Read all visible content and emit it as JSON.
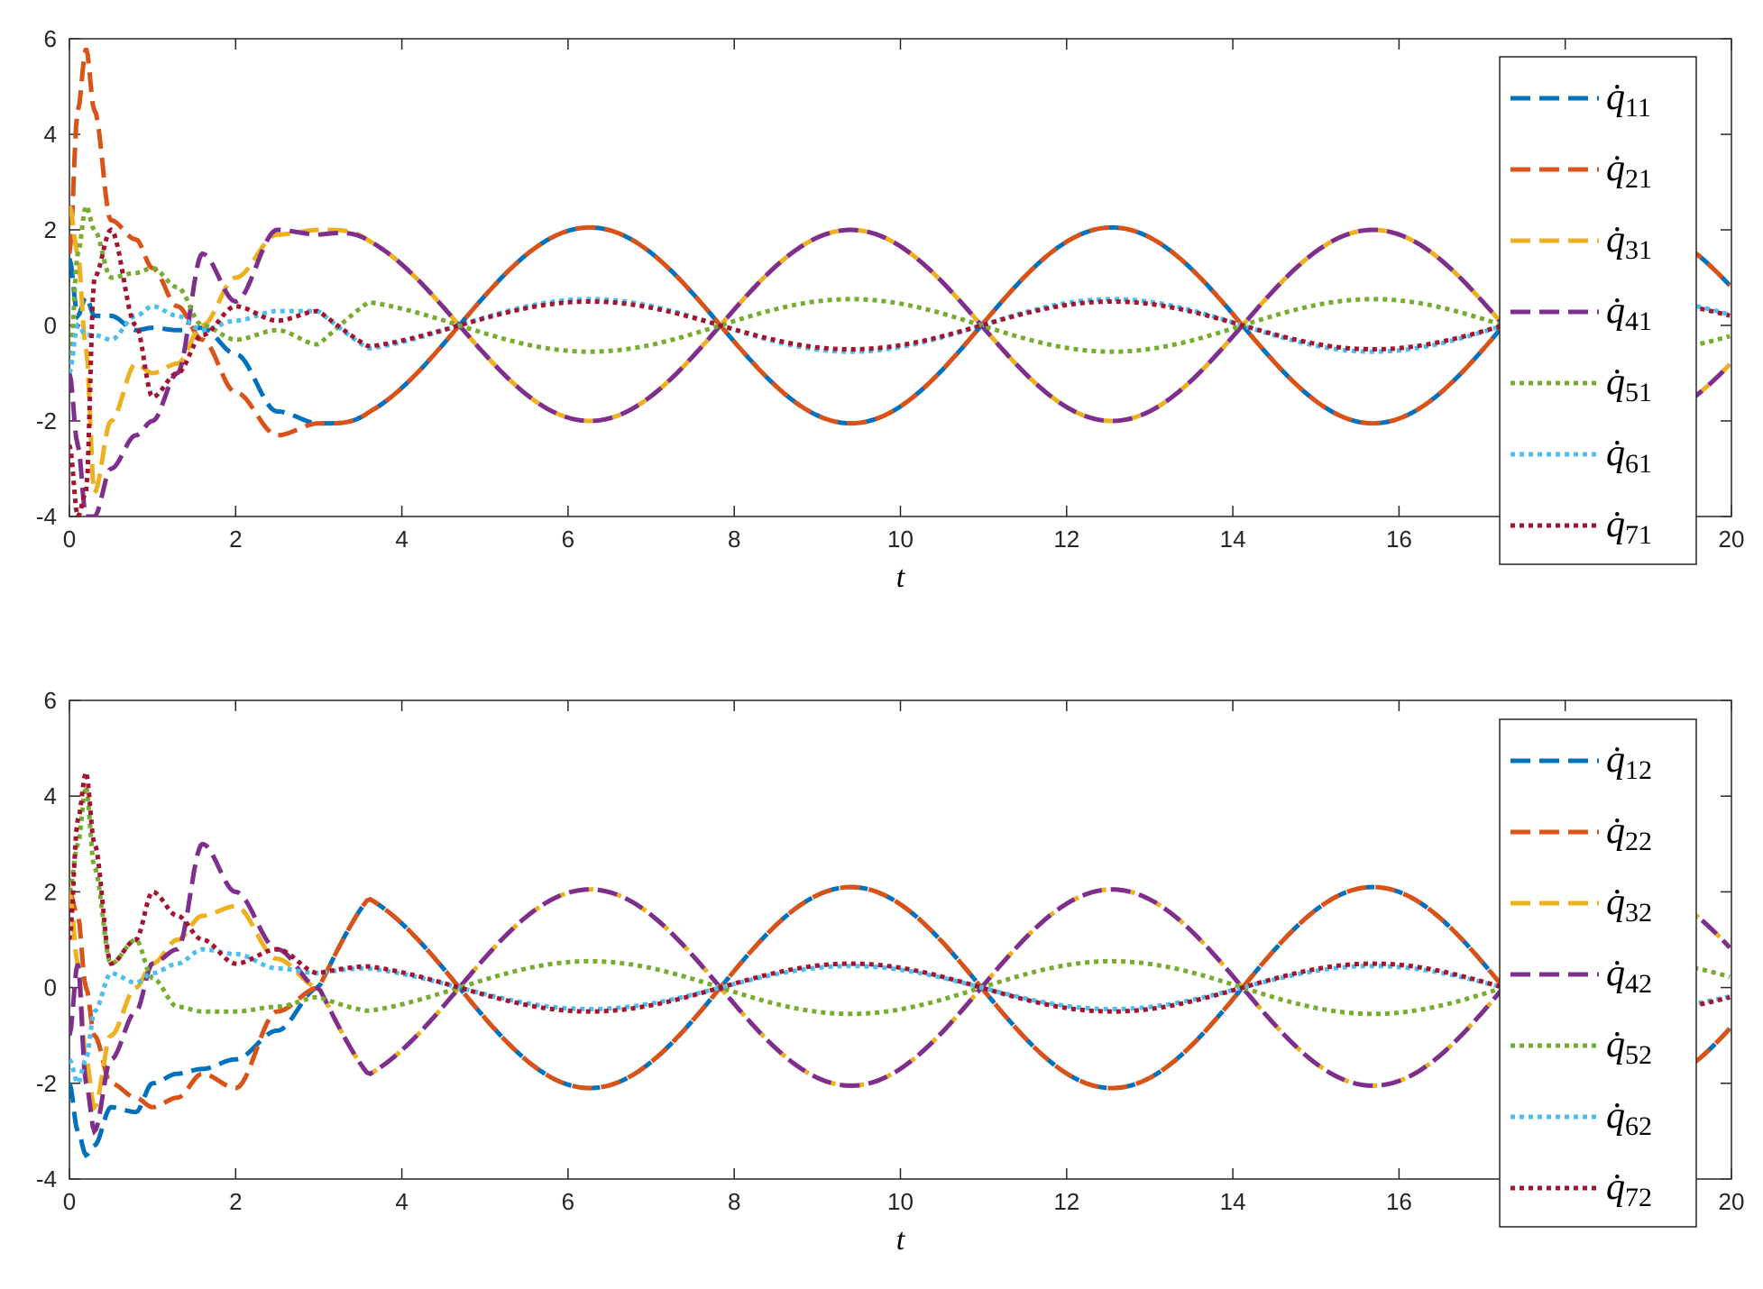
{
  "chart_data": [
    {
      "type": "line",
      "xlabel": "t",
      "xlim": [
        0,
        20
      ],
      "ylim": [
        -4,
        6
      ],
      "xticks": [
        "0",
        "2",
        "4",
        "6",
        "8",
        "10",
        "12",
        "14",
        "16",
        "18",
        "20"
      ],
      "yticks": [
        "-4",
        "-2",
        "0",
        "2",
        "4",
        "6"
      ],
      "legend_position": "right",
      "grid": false,
      "series": [
        {
          "name": "q̇",
          "sub": "11",
          "color": "#0072BD",
          "style": "dashed",
          "amp": 2.05,
          "phase": 3.14159,
          "omega": 1.0,
          "offset": 0.0,
          "x0": [
            0,
            0.1,
            0.2,
            0.3,
            0.5,
            0.8,
            1.0,
            1.3,
            1.6,
            2.0,
            2.5,
            3.0
          ],
          "y0": [
            1.4,
            0.2,
            0.6,
            0.2,
            0.2,
            -0.1,
            -0.05,
            -0.1,
            -0.05,
            -0.6,
            -1.8,
            -2.05
          ]
        },
        {
          "name": "q̇",
          "sub": "21",
          "color": "#D95319",
          "style": "dashed",
          "amp": 2.05,
          "phase": 3.14159,
          "omega": 1.0,
          "offset": 0.0,
          "x0": [
            0,
            0.1,
            0.2,
            0.3,
            0.5,
            0.8,
            1.0,
            1.3,
            1.6,
            2.0,
            2.5,
            3.0
          ],
          "y0": [
            1.5,
            4.5,
            5.8,
            4.5,
            2.2,
            1.8,
            1.2,
            0.4,
            -0.3,
            -1.4,
            -2.3,
            -2.05
          ]
        },
        {
          "name": "q̇",
          "sub": "31",
          "color": "#EDB120",
          "style": "dashed",
          "amp": 2.0,
          "phase": 0.0,
          "omega": 1.0,
          "offset": 0.0,
          "x0": [
            0,
            0.1,
            0.2,
            0.3,
            0.5,
            0.8,
            1.0,
            1.3,
            1.6,
            2.0,
            2.5,
            3.0
          ],
          "y0": [
            2.5,
            1.5,
            -0.5,
            -3.5,
            -2.0,
            -0.8,
            -1.0,
            -0.8,
            0.0,
            1.0,
            1.9,
            2.0
          ]
        },
        {
          "name": "q̇",
          "sub": "41",
          "color": "#7E2F8E",
          "style": "dashed",
          "amp": 2.0,
          "phase": 0.0,
          "omega": 1.0,
          "offset": 0.0,
          "x0": [
            0,
            0.1,
            0.2,
            0.3,
            0.5,
            0.8,
            1.0,
            1.3,
            1.6,
            2.0,
            2.5,
            3.0
          ],
          "y0": [
            -1.0,
            -2.5,
            -4.0,
            -4.0,
            -3.0,
            -2.3,
            -2.0,
            -1.0,
            1.5,
            0.5,
            2.0,
            1.9
          ]
        },
        {
          "name": "q̇",
          "sub": "51",
          "color": "#77AC30",
          "style": "dotted",
          "amp": 0.55,
          "phase": 0.0,
          "omega": 1.0,
          "offset": 0.0,
          "x0": [
            0,
            0.1,
            0.2,
            0.3,
            0.5,
            0.8,
            1.0,
            1.3,
            1.6,
            2.0,
            2.5,
            3.0
          ],
          "y0": [
            -1.0,
            1.5,
            2.5,
            2.0,
            1.0,
            1.1,
            1.2,
            0.8,
            0.0,
            -0.3,
            -0.1,
            -0.4
          ]
        },
        {
          "name": "q̇",
          "sub": "61",
          "color": "#4DBEEE",
          "style": "dotted",
          "amp": 0.55,
          "phase": 3.14159,
          "omega": 1.0,
          "offset": 0.0,
          "x0": [
            0,
            0.1,
            0.2,
            0.3,
            0.5,
            0.8,
            1.0,
            1.3,
            1.6,
            2.0,
            2.5,
            3.0
          ],
          "y0": [
            -1.0,
            0.0,
            -0.2,
            -0.2,
            -0.3,
            0.2,
            0.4,
            0.2,
            -0.1,
            0.1,
            0.3,
            0.3
          ]
        },
        {
          "name": "q̇",
          "sub": "71",
          "color": "#A2142F",
          "style": "dotted",
          "amp": 0.5,
          "phase": 3.14159,
          "omega": 1.0,
          "offset": 0.0,
          "x0": [
            0,
            0.1,
            0.2,
            0.3,
            0.5,
            0.8,
            1.0,
            1.3,
            1.6,
            2.0,
            2.5,
            3.0
          ],
          "y0": [
            -2.5,
            -4.0,
            -3.5,
            1.0,
            2.0,
            0.0,
            -1.5,
            -1.0,
            -0.2,
            0.4,
            0.1,
            0.3
          ]
        }
      ]
    },
    {
      "type": "line",
      "xlabel": "t",
      "xlim": [
        0,
        20
      ],
      "ylim": [
        -4,
        6
      ],
      "xticks": [
        "0",
        "2",
        "4",
        "6",
        "8",
        "10",
        "12",
        "14",
        "16",
        "18",
        "20"
      ],
      "yticks": [
        "-4",
        "-2",
        "0",
        "2",
        "4",
        "6"
      ],
      "legend_position": "right",
      "grid": false,
      "series": [
        {
          "name": "q̇",
          "sub": "12",
          "color": "#0072BD",
          "style": "dashed",
          "amp": 2.1,
          "phase": 0.0,
          "omega": 1.0,
          "offset": 0.0,
          "x0": [
            0,
            0.1,
            0.2,
            0.3,
            0.5,
            0.8,
            1.0,
            1.3,
            1.6,
            2.0,
            2.5,
            3.0
          ],
          "y0": [
            -2.0,
            -3.0,
            -3.5,
            -3.3,
            -2.5,
            -2.6,
            -2.0,
            -1.8,
            -1.7,
            -1.5,
            -0.9,
            0.0
          ]
        },
        {
          "name": "q̇",
          "sub": "22",
          "color": "#D95319",
          "style": "dashed",
          "amp": 2.1,
          "phase": 0.0,
          "omega": 1.0,
          "offset": 0.0,
          "x0": [
            0,
            0.1,
            0.2,
            0.3,
            0.5,
            0.8,
            1.0,
            1.3,
            1.6,
            2.0,
            2.5,
            3.0
          ],
          "y0": [
            2.0,
            1.5,
            0.0,
            -1.0,
            -2.0,
            -2.3,
            -2.5,
            -2.3,
            -1.8,
            -2.1,
            -0.5,
            0.0
          ]
        },
        {
          "name": "q̇",
          "sub": "32",
          "color": "#EDB120",
          "style": "dashed",
          "amp": 2.05,
          "phase": 3.14159,
          "omega": 1.0,
          "offset": 0.0,
          "x0": [
            0,
            0.1,
            0.2,
            0.3,
            0.5,
            0.8,
            1.0,
            1.3,
            1.6,
            2.0,
            2.5,
            3.0
          ],
          "y0": [
            2.0,
            0.5,
            -1.5,
            -2.5,
            -1.0,
            0.0,
            0.5,
            1.0,
            1.5,
            1.7,
            0.6,
            0.0
          ]
        },
        {
          "name": "q̇",
          "sub": "42",
          "color": "#7E2F8E",
          "style": "dashed",
          "amp": 2.05,
          "phase": 3.14159,
          "omega": 1.0,
          "offset": 0.0,
          "x0": [
            0,
            0.1,
            0.2,
            0.3,
            0.5,
            0.8,
            1.0,
            1.3,
            1.6,
            2.0,
            2.5,
            3.0
          ],
          "y0": [
            -1.0,
            0.5,
            -2.0,
            -3.0,
            -1.5,
            -0.5,
            0.5,
            0.8,
            3.0,
            2.0,
            0.8,
            0.0
          ]
        },
        {
          "name": "q̇",
          "sub": "52",
          "color": "#77AC30",
          "style": "dotted",
          "amp": 0.55,
          "phase": 3.14159,
          "omega": 1.0,
          "offset": 0.0,
          "x0": [
            0,
            0.1,
            0.2,
            0.3,
            0.5,
            0.8,
            1.0,
            1.3,
            1.6,
            2.0,
            2.5,
            3.0
          ],
          "y0": [
            2.0,
            3.0,
            4.2,
            2.5,
            0.5,
            1.0,
            0.2,
            -0.4,
            -0.5,
            -0.5,
            -0.4,
            -0.2
          ]
        },
        {
          "name": "q̇",
          "sub": "62",
          "color": "#4DBEEE",
          "style": "dotted",
          "amp": 0.45,
          "phase": 0.0,
          "omega": 1.0,
          "offset": 0.0,
          "x0": [
            0,
            0.1,
            0.2,
            0.3,
            0.5,
            0.8,
            1.0,
            1.3,
            1.6,
            2.0,
            2.5,
            3.0
          ],
          "y0": [
            -1.5,
            -2.0,
            -1.5,
            -0.5,
            0.3,
            0.1,
            0.3,
            0.5,
            0.8,
            0.7,
            0.4,
            0.3
          ]
        },
        {
          "name": "q̇",
          "sub": "72",
          "color": "#A2142F",
          "style": "dotted",
          "amp": 0.5,
          "phase": 0.0,
          "omega": 1.0,
          "offset": 0.0,
          "x0": [
            0,
            0.1,
            0.2,
            0.3,
            0.5,
            0.8,
            1.0,
            1.3,
            1.6,
            2.0,
            2.5,
            3.0
          ],
          "y0": [
            1.0,
            3.5,
            4.5,
            3.0,
            0.5,
            1.0,
            2.0,
            1.5,
            1.0,
            0.5,
            0.8,
            0.3
          ]
        }
      ]
    }
  ]
}
